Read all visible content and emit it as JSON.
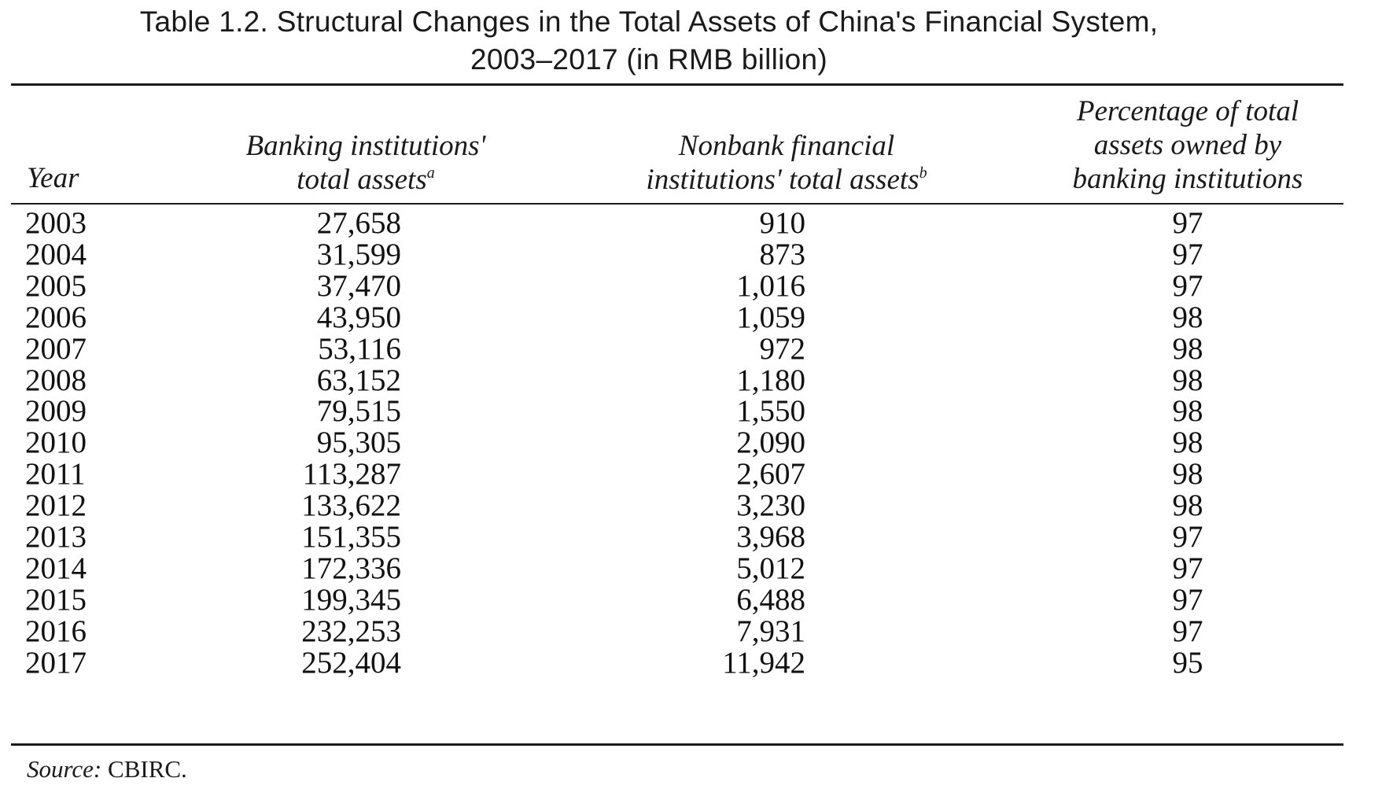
{
  "table": {
    "title_line1": "Table 1.2. Structural Changes in the Total Assets of China's Financial System,",
    "title_line2": "2003–2017 (in RMB billion)",
    "headers": {
      "year": "Year",
      "bank_line1": "Banking institutions'",
      "bank_line2": "total assets",
      "bank_footnote": "a",
      "nonbank_line1": "Nonbank financial",
      "nonbank_line2": "institutions' total assets",
      "nonbank_footnote": "b",
      "pct_line1": "Percentage of total",
      "pct_line2": "assets owned by",
      "pct_line3": "banking institutions"
    },
    "rows": [
      {
        "year": "2003",
        "bank": "27,658",
        "nonbank": "910",
        "pct": "97"
      },
      {
        "year": "2004",
        "bank": "31,599",
        "nonbank": "873",
        "pct": "97"
      },
      {
        "year": "2005",
        "bank": "37,470",
        "nonbank": "1,016",
        "pct": "97"
      },
      {
        "year": "2006",
        "bank": "43,950",
        "nonbank": "1,059",
        "pct": "98"
      },
      {
        "year": "2007",
        "bank": "53,116",
        "nonbank": "972",
        "pct": "98"
      },
      {
        "year": "2008",
        "bank": "63,152",
        "nonbank": "1,180",
        "pct": "98"
      },
      {
        "year": "2009",
        "bank": "79,515",
        "nonbank": "1,550",
        "pct": "98"
      },
      {
        "year": "2010",
        "bank": "95,305",
        "nonbank": "2,090",
        "pct": "98"
      },
      {
        "year": "2011",
        "bank": "113,287",
        "nonbank": "2,607",
        "pct": "98"
      },
      {
        "year": "2012",
        "bank": "133,622",
        "nonbank": "3,230",
        "pct": "98"
      },
      {
        "year": "2013",
        "bank": "151,355",
        "nonbank": "3,968",
        "pct": "97"
      },
      {
        "year": "2014",
        "bank": "172,336",
        "nonbank": "5,012",
        "pct": "97"
      },
      {
        "year": "2015",
        "bank": "199,345",
        "nonbank": "6,488",
        "pct": "97"
      },
      {
        "year": "2016",
        "bank": "232,253",
        "nonbank": "7,931",
        "pct": "97"
      },
      {
        "year": "2017",
        "bank": "252,404",
        "nonbank": "11,942",
        "pct": "95"
      }
    ],
    "source_label": "Source:",
    "source_text": "CBIRC."
  }
}
